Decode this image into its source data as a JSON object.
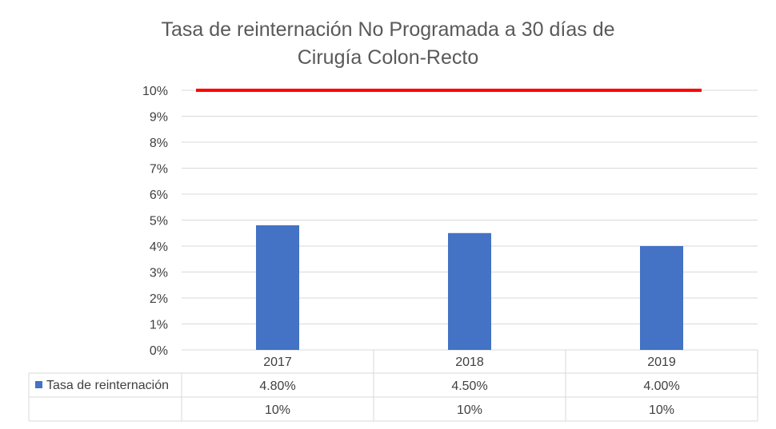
{
  "chart_data": {
    "type": "bar",
    "title_lines": [
      "Tasa de reinternación No Programada a 30 días de",
      "Cirugía Colon-Recto"
    ],
    "categories": [
      "2017",
      "2018",
      "2019"
    ],
    "y_ticks": [
      "0%",
      "1%",
      "2%",
      "3%",
      "4%",
      "5%",
      "6%",
      "7%",
      "8%",
      "9%",
      "10%"
    ],
    "ylim": [
      0,
      10
    ],
    "grid": true,
    "series": [
      {
        "name": "Tasa de reinternación",
        "type": "bar",
        "values": [
          4.8,
          4.5,
          4.0
        ],
        "labels": [
          "4.80%",
          "4.50%",
          "4.00%"
        ],
        "color": "#4472C4"
      },
      {
        "type": "line",
        "values": [
          10,
          10,
          10
        ],
        "labels": [
          "10%",
          "10%",
          "10%"
        ],
        "color": "#FF0000"
      }
    ],
    "data_table": true
  }
}
